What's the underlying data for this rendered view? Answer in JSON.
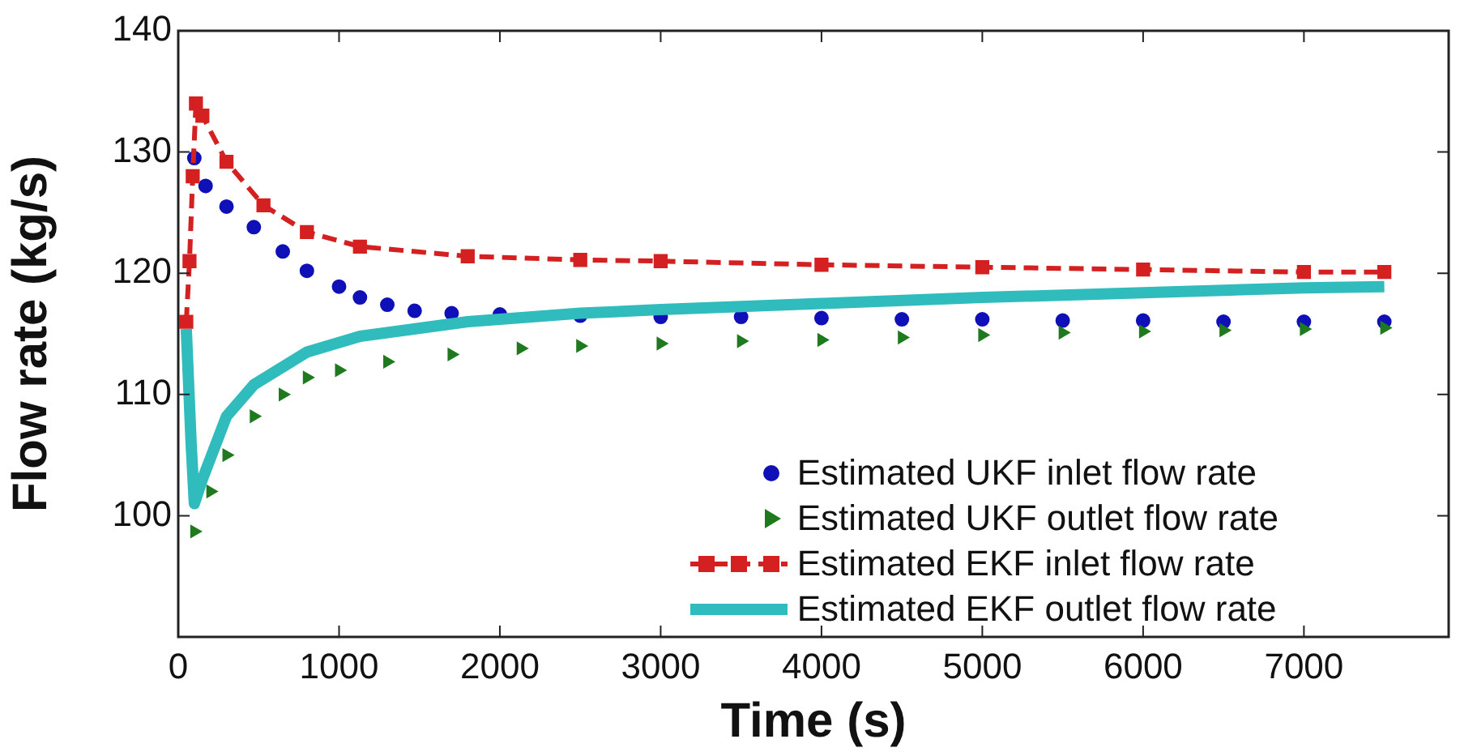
{
  "chart_data": {
    "type": "line",
    "xlabel": "Time (s)",
    "ylabel": "Flow rate (kg/s)",
    "xlim": [
      0,
      7900
    ],
    "xticks": [
      0,
      1000,
      2000,
      3000,
      4000,
      5000,
      6000,
      7000
    ],
    "ylim": [
      90,
      140
    ],
    "yticks": [
      100,
      110,
      120,
      130,
      140
    ],
    "grid": false,
    "legend": "bottom right",
    "series": [
      {
        "name": "Estimated UKF inlet flow rate",
        "type": "scatter",
        "marker": "circle",
        "color": "#1010b8",
        "x": [
          100,
          170,
          300,
          470,
          650,
          800,
          1000,
          1130,
          1300,
          1470,
          1700,
          2000,
          2500,
          3000,
          3500,
          4000,
          4500,
          5000,
          5500,
          6000,
          6500,
          7000,
          7500
        ],
        "values": [
          129.5,
          127.2,
          125.5,
          123.8,
          121.8,
          120.2,
          118.9,
          118,
          117.4,
          116.9,
          116.7,
          116.6,
          116.5,
          116.4,
          116.4,
          116.3,
          116.2,
          116.2,
          116.1,
          116.1,
          116,
          116,
          116
        ]
      },
      {
        "name": "Estimated UKF outlet flow rate",
        "type": "scatter",
        "marker": "triangle",
        "color": "#1f7a1f",
        "x": [
          100,
          200,
          300,
          470,
          650,
          800,
          1000,
          1300,
          1700,
          2130,
          2500,
          3000,
          3500,
          4000,
          4500,
          5000,
          5500,
          6000,
          6500,
          7000,
          7500
        ],
        "values": [
          98.7,
          102,
          105,
          108.2,
          110,
          111.4,
          112,
          112.7,
          113.3,
          113.8,
          114,
          114.2,
          114.4,
          114.5,
          114.7,
          114.9,
          115.1,
          115.2,
          115.3,
          115.4,
          115.5
        ]
      },
      {
        "name": "Estimated EKF inlet flow rate",
        "marker": "square",
        "line_style": "dashed",
        "color": "#d42020",
        "x": [
          50,
          70,
          90,
          110,
          150,
          300,
          530,
          800,
          1130,
          1800,
          2500,
          3000,
          4000,
          5000,
          6000,
          7000,
          7500
        ],
        "values": [
          116,
          121,
          128,
          134,
          133,
          129.2,
          125.6,
          123.4,
          122.2,
          121.4,
          121.1,
          121,
          120.7,
          120.5,
          120.3,
          120.1,
          120.1
        ]
      },
      {
        "name": "Estimated EKF outlet flow rate",
        "marker": "none",
        "line_style": "solid",
        "color": "#30bcbc",
        "x": [
          50,
          80,
          100,
          150,
          300,
          470,
          800,
          1130,
          1800,
          2500,
          3000,
          4000,
          5000,
          6000,
          7000,
          7500
        ],
        "values": [
          115.4,
          106,
          101,
          103,
          108.2,
          110.8,
          113.5,
          114.8,
          116,
          116.7,
          117,
          117.5,
          118,
          118.4,
          118.8,
          118.9
        ]
      }
    ]
  }
}
